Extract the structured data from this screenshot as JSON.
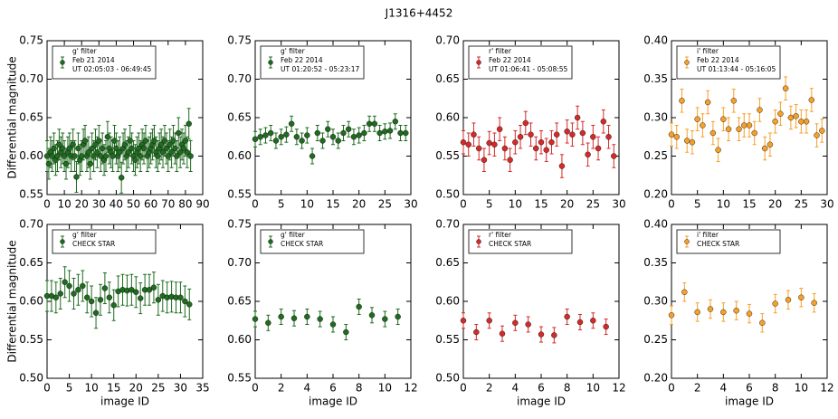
{
  "title": "J1316+4452",
  "chart_data": [
    {
      "type": "scatter",
      "ylabel": "Differential magnitude",
      "annotations": [
        "Feb 21 2014",
        "UT 02:05:03 - 06:49:45"
      ],
      "x": [
        0,
        1,
        2,
        3,
        4,
        5,
        6,
        7,
        8,
        9,
        10,
        11,
        12,
        13,
        14,
        15,
        16,
        17,
        18,
        19,
        20,
        21,
        22,
        23,
        24,
        25,
        26,
        27,
        28,
        29,
        30,
        31,
        32,
        33,
        34,
        35,
        36,
        37,
        38,
        39,
        40,
        41,
        42,
        43,
        44,
        45,
        46,
        47,
        48,
        49,
        50,
        51,
        52,
        53,
        54,
        55,
        56,
        57,
        58,
        59,
        60,
        61,
        62,
        63,
        64,
        65,
        66,
        67,
        68,
        69,
        70,
        71,
        72,
        73,
        74,
        75,
        76,
        77,
        78,
        79,
        80,
        81,
        82,
        83
      ],
      "series": [
        {
          "name": "g' filter",
          "color": "#1f6b1f",
          "error": 0.02,
          "values": [
            0.6,
            0.59,
            0.605,
            0.6,
            0.61,
            0.595,
            0.6,
            0.615,
            0.605,
            0.61,
            0.6,
            0.59,
            0.605,
            0.61,
            0.6,
            0.615,
            0.6,
            0.573,
            0.61,
            0.595,
            0.6,
            0.615,
            0.62,
            0.6,
            0.605,
            0.59,
            0.61,
            0.6,
            0.615,
            0.605,
            0.62,
            0.6,
            0.61,
            0.595,
            0.6,
            0.625,
            0.61,
            0.605,
            0.6,
            0.62,
            0.61,
            0.6,
            0.605,
            0.572,
            0.61,
            0.615,
            0.6,
            0.605,
            0.62,
            0.61,
            0.6,
            0.595,
            0.605,
            0.61,
            0.6,
            0.615,
            0.61,
            0.62,
            0.6,
            0.605,
            0.61,
            0.615,
            0.62,
            0.605,
            0.6,
            0.61,
            0.615,
            0.605,
            0.62,
            0.61,
            0.6,
            0.615,
            0.605,
            0.62,
            0.61,
            0.6,
            0.63,
            0.605,
            0.615,
            0.61,
            0.62,
            0.605,
            0.642,
            0.6
          ]
        }
      ],
      "xlim": [
        0,
        90
      ],
      "xticks": [
        0,
        10,
        20,
        30,
        40,
        50,
        60,
        70,
        80,
        90
      ],
      "ylim": [
        0.55,
        0.75
      ],
      "yticks": [
        0.55,
        {
          "value": 0.6,
          "label": "0.60"
        },
        0.65,
        {
          "value": 0.7,
          "label": "0.70"
        },
        0.75
      ]
    },
    {
      "type": "scatter",
      "annotations": [
        "Feb 22 2014",
        "UT 01:20:52 - 05:23:17"
      ],
      "x": [
        0,
        1,
        2,
        3,
        4,
        5,
        6,
        7,
        8,
        9,
        10,
        11,
        12,
        13,
        14,
        15,
        16,
        17,
        18,
        19,
        20,
        21,
        22,
        23,
        24,
        25,
        26,
        27,
        28,
        29
      ],
      "series": [
        {
          "name": "g' filter",
          "color": "#1f6b1f",
          "error": 0.01,
          "values": [
            0.622,
            0.625,
            0.627,
            0.63,
            0.62,
            0.625,
            0.628,
            0.642,
            0.625,
            0.62,
            0.627,
            0.6,
            0.63,
            0.62,
            0.635,
            0.625,
            0.62,
            0.63,
            0.635,
            0.625,
            0.627,
            0.63,
            0.642,
            0.642,
            0.63,
            0.632,
            0.633,
            0.645,
            0.63,
            0.63
          ]
        }
      ],
      "xlim": [
        0,
        30
      ],
      "xticks": [
        0,
        5,
        10,
        15,
        20,
        25,
        30
      ],
      "ylim": [
        0.55,
        0.75
      ],
      "yticks": [
        0.55,
        {
          "value": 0.6,
          "label": "0.60"
        },
        0.65,
        {
          "value": 0.7,
          "label": "0.70"
        },
        0.75
      ]
    },
    {
      "type": "scatter",
      "annotations": [
        "Feb 22 2014",
        "UT 01:06:41 - 05:08:55"
      ],
      "x": [
        0,
        1,
        2,
        3,
        4,
        5,
        6,
        7,
        8,
        9,
        10,
        11,
        12,
        13,
        14,
        15,
        16,
        17,
        18,
        19,
        20,
        21,
        22,
        23,
        24,
        25,
        26,
        27,
        28,
        29
      ],
      "series": [
        {
          "name": "r' filter",
          "color": "#d42a2a",
          "error": 0.015,
          "values": [
            0.568,
            0.565,
            0.578,
            0.56,
            0.545,
            0.567,
            0.565,
            0.585,
            0.56,
            0.545,
            0.568,
            0.575,
            0.593,
            0.578,
            0.56,
            0.568,
            0.558,
            0.568,
            0.578,
            0.537,
            0.582,
            0.578,
            0.6,
            0.58,
            0.552,
            0.575,
            0.56,
            0.595,
            0.575,
            0.55
          ]
        }
      ],
      "xlim": [
        0,
        30
      ],
      "xticks": [
        0,
        5,
        10,
        15,
        20,
        25,
        30
      ],
      "ylim": [
        0.5,
        0.7
      ],
      "yticks": [
        {
          "value": 0.5,
          "label": "0.50"
        },
        0.55,
        {
          "value": 0.6,
          "label": "0.60"
        },
        0.65,
        {
          "value": 0.7,
          "label": "0.70"
        }
      ]
    },
    {
      "type": "scatter",
      "annotations": [
        "Feb 22 2014",
        "UT 01:13:44 - 05:16:05"
      ],
      "x": [
        0,
        1,
        2,
        3,
        4,
        5,
        6,
        7,
        8,
        9,
        10,
        11,
        12,
        13,
        14,
        15,
        16,
        17,
        18,
        19,
        20,
        21,
        22,
        23,
        24,
        25,
        26,
        27,
        28,
        29
      ],
      "series": [
        {
          "name": "i' filter",
          "color": "#f5a02a",
          "error": 0.015,
          "values": [
            0.278,
            0.275,
            0.322,
            0.27,
            0.268,
            0.298,
            0.29,
            0.32,
            0.28,
            0.258,
            0.298,
            0.285,
            0.322,
            0.285,
            0.29,
            0.29,
            0.28,
            0.31,
            0.26,
            0.265,
            0.295,
            0.305,
            0.338,
            0.3,
            0.302,
            0.295,
            0.295,
            0.323,
            0.277,
            0.283
          ]
        }
      ],
      "xlim": [
        0,
        30
      ],
      "xticks": [
        0,
        5,
        10,
        15,
        20,
        25,
        30
      ],
      "ylim": [
        0.2,
        0.4
      ],
      "yticks": [
        {
          "value": 0.2,
          "label": "0.20"
        },
        0.25,
        {
          "value": 0.3,
          "label": "0.30"
        },
        0.35,
        {
          "value": 0.4,
          "label": "0.40"
        }
      ]
    },
    {
      "type": "scatter",
      "ylabel": "Differential magnitude",
      "xlabel": "image ID",
      "annotations": [
        "CHECK STAR"
      ],
      "x": [
        0,
        1,
        2,
        3,
        4,
        5,
        6,
        7,
        8,
        9,
        10,
        11,
        12,
        13,
        14,
        15,
        16,
        17,
        18,
        19,
        20,
        21,
        22,
        23,
        24,
        25,
        26,
        27,
        28,
        29,
        30,
        31,
        32
      ],
      "series": [
        {
          "name": "g' filter",
          "color": "#1f6b1f",
          "error": 0.02,
          "values": [
            0.607,
            0.607,
            0.605,
            0.61,
            0.625,
            0.62,
            0.61,
            0.615,
            0.62,
            0.605,
            0.6,
            0.585,
            0.602,
            0.617,
            0.605,
            0.595,
            0.613,
            0.615,
            0.614,
            0.615,
            0.612,
            0.604,
            0.615,
            0.615,
            0.618,
            0.602,
            0.607,
            0.605,
            0.606,
            0.605,
            0.605,
            0.6,
            0.596
          ]
        }
      ],
      "xlim": [
        0,
        35
      ],
      "xticks": [
        0,
        5,
        10,
        15,
        20,
        25,
        30,
        35
      ],
      "ylim": [
        0.5,
        0.7
      ],
      "yticks": [
        {
          "value": 0.5,
          "label": "0.50"
        },
        0.55,
        {
          "value": 0.6,
          "label": "0.60"
        },
        0.65,
        {
          "value": 0.7,
          "label": "0.70"
        }
      ]
    },
    {
      "type": "scatter",
      "xlabel": "image ID",
      "annotations": [
        "CHECK STAR"
      ],
      "x": [
        0,
        1,
        2,
        3,
        4,
        5,
        6,
        7,
        8,
        9,
        10,
        11
      ],
      "series": [
        {
          "name": "g' filter",
          "color": "#1f6b1f",
          "error": 0.01,
          "values": [
            0.627,
            0.622,
            0.63,
            0.628,
            0.63,
            0.627,
            0.62,
            0.61,
            0.643,
            0.632,
            0.627,
            0.63
          ]
        }
      ],
      "xlim": [
        0,
        12
      ],
      "xticks": [
        0,
        2,
        4,
        6,
        8,
        10,
        12
      ],
      "ylim": [
        0.55,
        0.75
      ],
      "yticks": [
        0.55,
        {
          "value": 0.6,
          "label": "0.60"
        },
        0.65,
        {
          "value": 0.7,
          "label": "0.70"
        },
        0.75
      ]
    },
    {
      "type": "scatter",
      "xlabel": "image ID",
      "annotations": [
        "CHECK STAR"
      ],
      "x": [
        0,
        1,
        2,
        3,
        4,
        5,
        6,
        7,
        8,
        9,
        10,
        11
      ],
      "series": [
        {
          "name": "r' filter",
          "color": "#d42a2a",
          "error": 0.01,
          "values": [
            0.575,
            0.56,
            0.575,
            0.558,
            0.572,
            0.57,
            0.557,
            0.556,
            0.58,
            0.573,
            0.575,
            0.567
          ]
        }
      ],
      "xlim": [
        0,
        12
      ],
      "xticks": [
        0,
        2,
        4,
        6,
        8,
        10,
        12
      ],
      "ylim": [
        0.5,
        0.7
      ],
      "yticks": [
        {
          "value": 0.5,
          "label": "0.50"
        },
        0.55,
        {
          "value": 0.6,
          "label": "0.60"
        },
        0.65,
        {
          "value": 0.7,
          "label": "0.70"
        }
      ]
    },
    {
      "type": "scatter",
      "xlabel": "image ID",
      "annotations": [
        "CHECK STAR"
      ],
      "x": [
        0,
        1,
        2,
        3,
        4,
        5,
        6,
        7,
        8,
        9,
        10,
        11
      ],
      "series": [
        {
          "name": "i' filter",
          "color": "#f5a02a",
          "error": 0.012,
          "values": [
            0.282,
            0.312,
            0.286,
            0.29,
            0.286,
            0.288,
            0.284,
            0.272,
            0.297,
            0.302,
            0.305,
            0.298
          ]
        }
      ],
      "xlim": [
        0,
        12
      ],
      "xticks": [
        0,
        2,
        4,
        6,
        8,
        10,
        12
      ],
      "ylim": [
        0.2,
        0.4
      ],
      "yticks": [
        {
          "value": 0.2,
          "label": "0.20"
        },
        0.25,
        {
          "value": 0.3,
          "label": "0.30"
        },
        0.35,
        {
          "value": 0.4,
          "label": "0.40"
        }
      ]
    }
  ]
}
